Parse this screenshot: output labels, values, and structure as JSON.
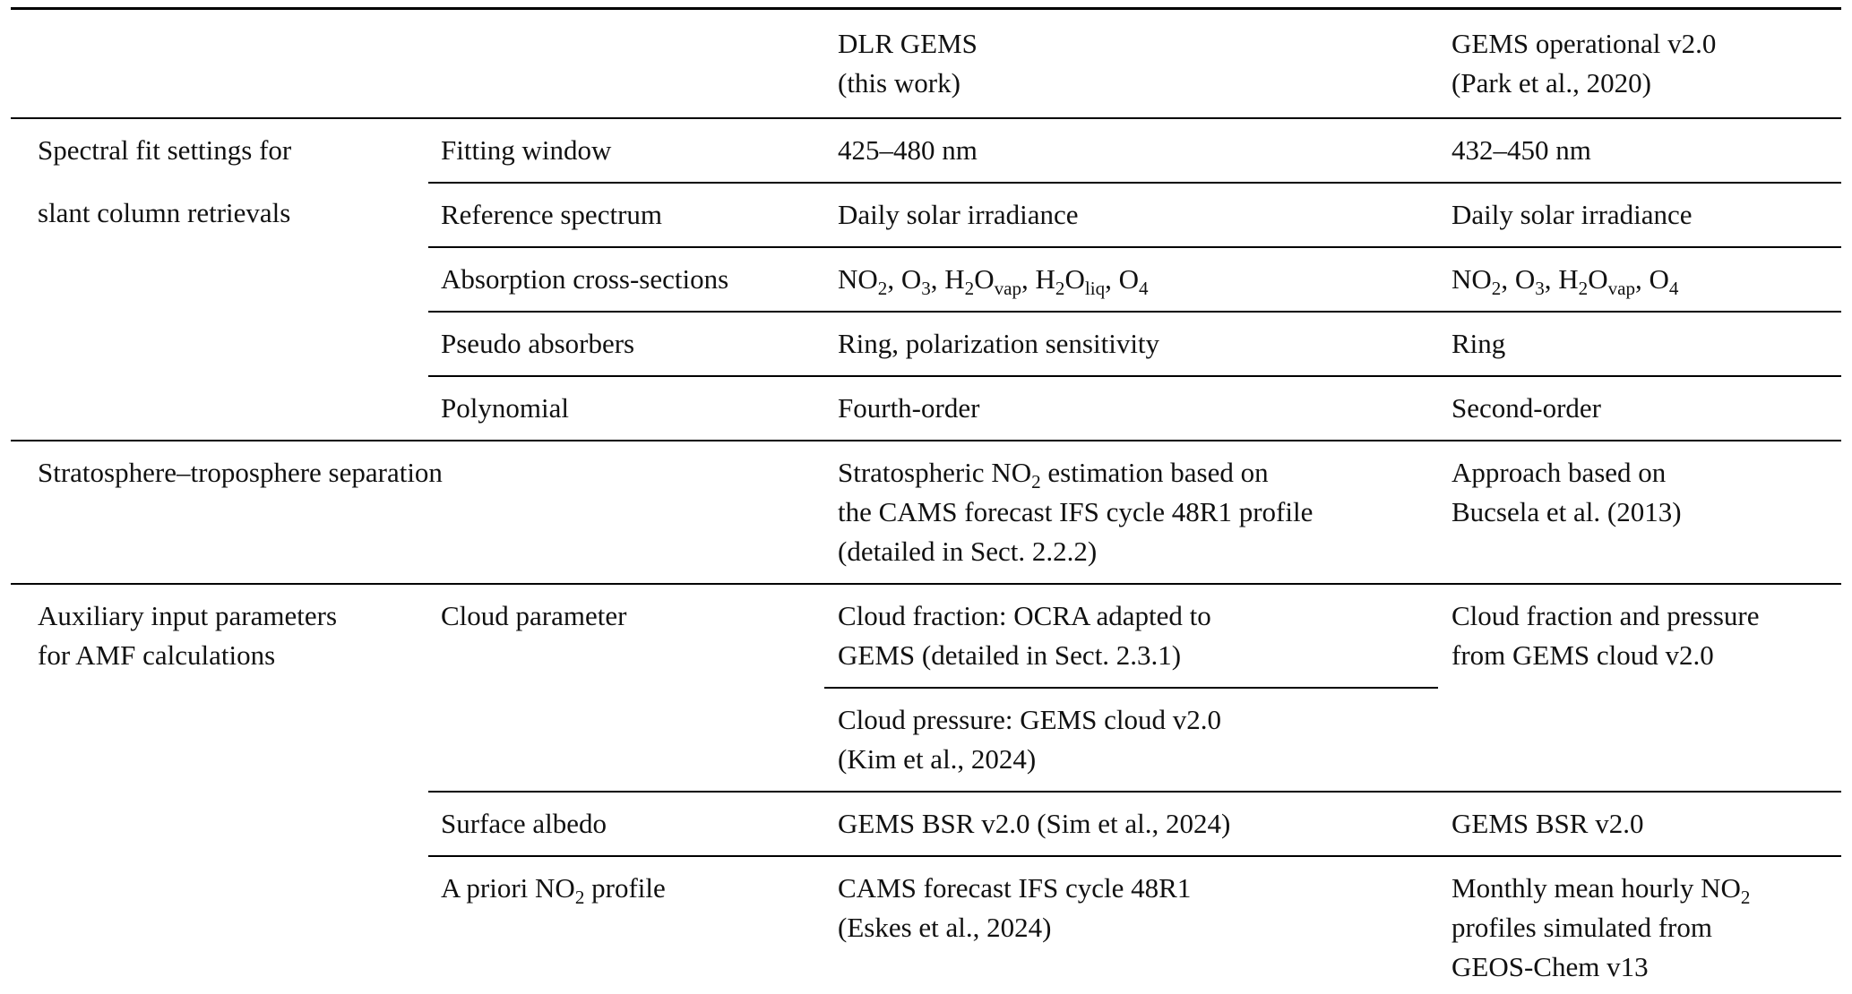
{
  "colors": {
    "background": "#ffffff",
    "text": "#111111",
    "rule": "#000000"
  },
  "header": {
    "dlr": "DLR GEMS\n(this work)",
    "operational": "GEMS operational v2.0\n(Park et al., 2020)"
  },
  "spectral": {
    "group_label": "Spectral fit settings for\nslant column retrievals",
    "rows": [
      {
        "param": "Fitting window",
        "dlr": "425–480 nm",
        "operational": "432–450 nm"
      },
      {
        "param": "Reference spectrum",
        "dlr": "Daily solar irradiance",
        "operational": "Daily solar irradiance"
      },
      {
        "param": "Absorption cross-sections",
        "dlr_html": "NO<sub>2</sub>, O<sub>3</sub>, H<sub>2</sub>O<sub>vap</sub>, H<sub>2</sub>O<sub>liq</sub>, O<sub>4</sub>",
        "operational_html": "NO<sub>2</sub>, O<sub>3</sub>, H<sub>2</sub>O<sub>vap</sub>, O<sub>4</sub>"
      },
      {
        "param": "Pseudo absorbers",
        "dlr": "Ring, polarization sensitivity",
        "operational": "Ring"
      },
      {
        "param": "Polynomial",
        "dlr": "Fourth-order",
        "operational": "Second-order"
      }
    ]
  },
  "stratosphere": {
    "group_label": "Stratosphere–troposphere separation",
    "dlr_html": "Stratospheric NO<sub>2</sub> estimation based on\nthe CAMS forecast IFS cycle 48R1 profile\n(detailed in Sect. 2.2.2)",
    "operational": "Approach based on\nBucsela et al. (2013)"
  },
  "auxiliary": {
    "group_label": "Auxiliary input parameters\nfor AMF calculations",
    "cloud": {
      "param": "Cloud parameter",
      "dlr_fraction": "Cloud fraction: OCRA adapted to\nGEMS (detailed in Sect. 2.3.1)",
      "dlr_pressure": "Cloud pressure: GEMS cloud v2.0\n(Kim et al., 2024)",
      "operational": "Cloud fraction and pressure\nfrom GEMS cloud v2.0"
    },
    "albedo": {
      "param": "Surface albedo",
      "dlr": "GEMS BSR v2.0 (Sim et al., 2024)",
      "operational": "GEMS BSR v2.0"
    },
    "profile": {
      "param_html": "A priori NO<sub>2</sub> profile",
      "dlr": "CAMS forecast IFS cycle 48R1\n(Eskes et al., 2024)",
      "operational_html": "Monthly mean hourly NO<sub>2</sub>\nprofiles simulated from\nGEOS-Chem v13"
    }
  }
}
